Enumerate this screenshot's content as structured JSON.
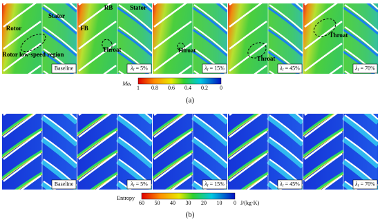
{
  "panel_a": {
    "label": "(a)",
    "annotations": [
      {
        "text": "Rotor"
      },
      {
        "text": "Stator"
      },
      {
        "text": "Rotor low-speed region"
      },
      {
        "text": "RB"
      },
      {
        "text": "Stator"
      },
      {
        "text": "FB"
      },
      {
        "text": "Throat"
      },
      {
        "text": "Throat"
      },
      {
        "text": "Throat"
      },
      {
        "text": "Throat"
      }
    ],
    "cases": [
      {
        "text": "Baseline"
      },
      {
        "symbol": "λ",
        "subscript": "r",
        "text": " = 5%"
      },
      {
        "symbol": "λ",
        "subscript": "r",
        "text": " = 15%"
      },
      {
        "symbol": "λ",
        "subscript": "r",
        "text": " = 45%"
      },
      {
        "symbol": "λ",
        "subscript": "r",
        "text": " = 70%"
      }
    ],
    "colorbar": {
      "symbol": "Ma",
      "subscript": "r",
      "ticks": [
        1,
        0.8,
        0.6,
        0.4,
        0.2,
        0
      ]
    }
  },
  "panel_b": {
    "label": "(b)",
    "cases": [
      {
        "text": "Baseline"
      },
      {
        "symbol": "λ",
        "subscript": "r",
        "text": " = 5%"
      },
      {
        "symbol": "λ",
        "subscript": "r",
        "text": " = 15%"
      },
      {
        "symbol": "λ",
        "subscript": "r",
        "text": " = 45%"
      },
      {
        "symbol": "λ",
        "subscript": "r",
        "text": " = 70%"
      }
    ],
    "colorbar": {
      "title": "Entropy",
      "unit": "J/(kg·K)",
      "ticks": [
        60,
        50,
        40,
        30,
        20,
        10,
        0
      ]
    }
  }
}
